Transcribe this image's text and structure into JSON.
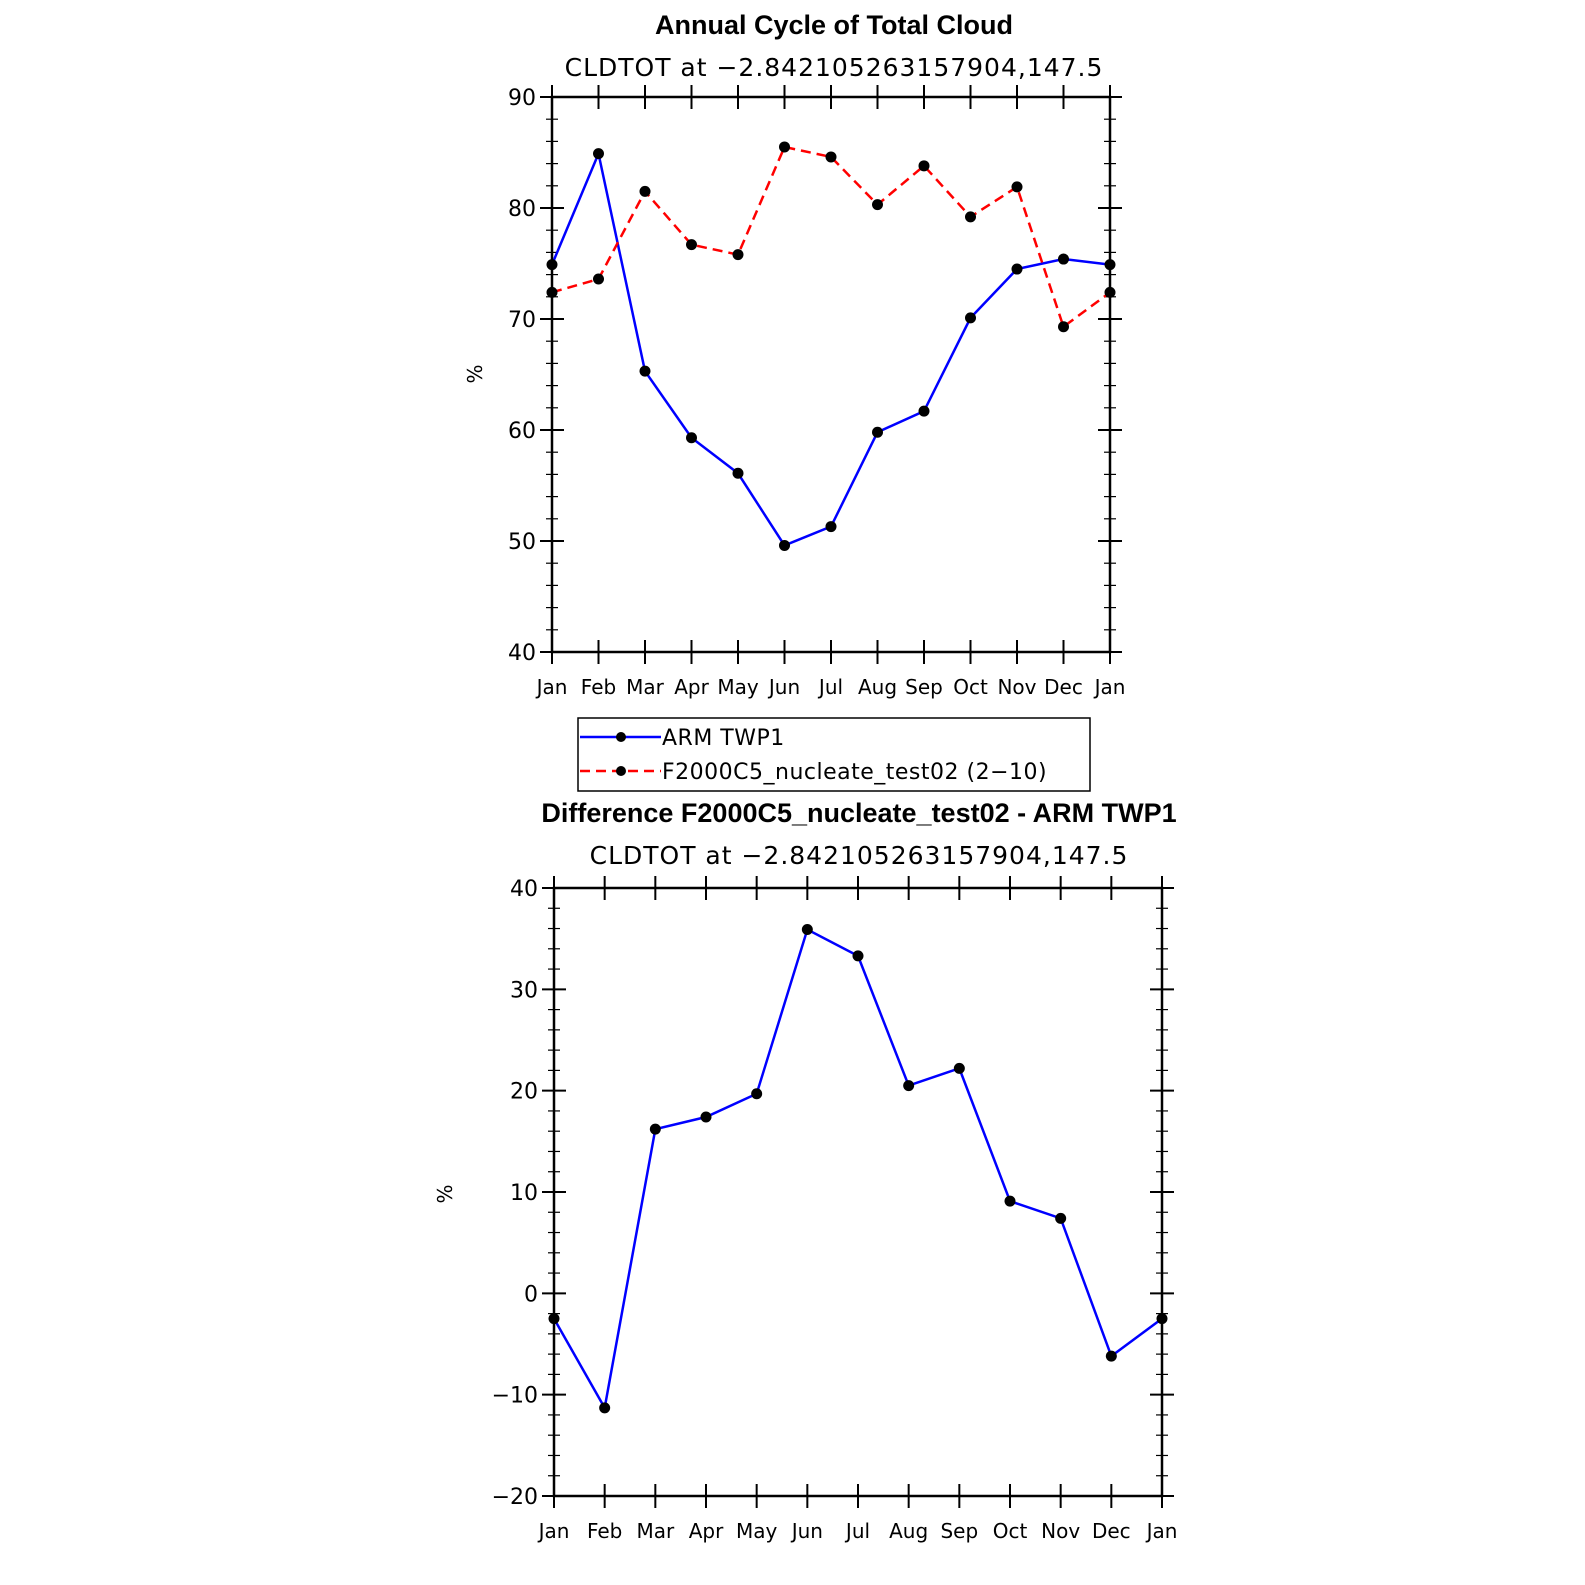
{
  "chart_data": [
    {
      "type": "line",
      "title": "Annual Cycle of Total Cloud",
      "subtitle": "CLDTOT at −2.842105263157904,147.5",
      "ylabel": "%",
      "ylim": [
        40,
        90
      ],
      "yticks": [
        "40",
        "50",
        "60",
        "70",
        "80",
        "90"
      ],
      "categories": [
        "Jan",
        "Feb",
        "Mar",
        "Apr",
        "May",
        "Jun",
        "Jul",
        "Aug",
        "Sep",
        "Oct",
        "Nov",
        "Dec",
        "Jan"
      ],
      "series": [
        {
          "name": "ARM TWP1",
          "color": "#0000ff",
          "dash": "solid",
          "values": [
            74.9,
            84.9,
            65.3,
            59.3,
            56.1,
            49.6,
            51.3,
            59.8,
            61.7,
            70.1,
            74.5,
            75.4,
            74.9
          ]
        },
        {
          "name": "F2000C5_nucleate_test02 (2−10)",
          "color": "#ff0000",
          "dash": "dashed",
          "values": [
            72.4,
            73.6,
            81.5,
            76.7,
            75.8,
            85.5,
            84.6,
            80.3,
            83.8,
            79.2,
            81.9,
            69.3,
            72.4
          ]
        }
      ],
      "legend": "below"
    },
    {
      "type": "line",
      "title": "Difference F2000C5_nucleate_test02 - ARM TWP1",
      "subtitle": "CLDTOT at −2.842105263157904,147.5",
      "ylabel": "%",
      "ylim": [
        -20,
        40
      ],
      "yticks": [
        "−20",
        "−10",
        "0",
        "10",
        "20",
        "30",
        "40"
      ],
      "categories": [
        "Jan",
        "Feb",
        "Mar",
        "Apr",
        "May",
        "Jun",
        "Jul",
        "Aug",
        "Sep",
        "Oct",
        "Nov",
        "Dec",
        "Jan"
      ],
      "series": [
        {
          "name": "Difference",
          "color": "#0000ff",
          "dash": "solid",
          "values": [
            -2.5,
            -11.3,
            16.2,
            17.4,
            19.7,
            35.9,
            33.3,
            20.5,
            22.2,
            9.1,
            7.4,
            -6.2,
            -2.5
          ]
        }
      ]
    }
  ]
}
